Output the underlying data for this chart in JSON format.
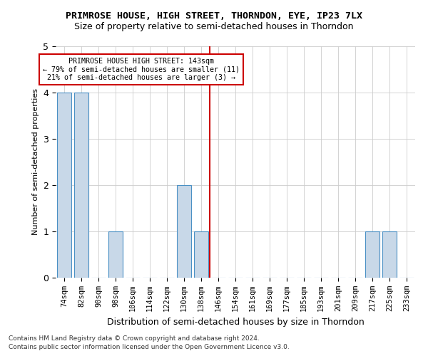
{
  "title": "PRIMROSE HOUSE, HIGH STREET, THORNDON, EYE, IP23 7LX",
  "subtitle": "Size of property relative to semi-detached houses in Thorndon",
  "xlabel": "Distribution of semi-detached houses by size in Thorndon",
  "ylabel": "Number of semi-detached properties",
  "categories": [
    "74sqm",
    "82sqm",
    "90sqm",
    "98sqm",
    "106sqm",
    "114sqm",
    "122sqm",
    "130sqm",
    "138sqm",
    "146sqm",
    "154sqm",
    "161sqm",
    "169sqm",
    "177sqm",
    "185sqm",
    "193sqm",
    "201sqm",
    "209sqm",
    "217sqm",
    "225sqm",
    "233sqm"
  ],
  "values": [
    4,
    4,
    0,
    1,
    0,
    0,
    0,
    2,
    1,
    0,
    0,
    0,
    0,
    0,
    0,
    0,
    0,
    0,
    1,
    1,
    0
  ],
  "bar_color": "#c8d8e8",
  "bar_edge_color": "#4a90c4",
  "vline_x": 8.5,
  "vline_color": "#cc0000",
  "annotation_line1": "PRIMROSE HOUSE HIGH STREET: 143sqm",
  "annotation_line2": "← 79% of semi-detached houses are smaller (11)",
  "annotation_line3": "21% of semi-detached houses are larger (3) →",
  "annotation_box_color": "#ffffff",
  "annotation_box_edge": "#cc0000",
  "ylim": [
    0,
    5
  ],
  "yticks": [
    0,
    1,
    2,
    3,
    4,
    5
  ],
  "background_color": "#ffffff",
  "grid_color": "#cccccc",
  "footer1": "Contains HM Land Registry data © Crown copyright and database right 2024.",
  "footer2": "Contains public sector information licensed under the Open Government Licence v3.0."
}
